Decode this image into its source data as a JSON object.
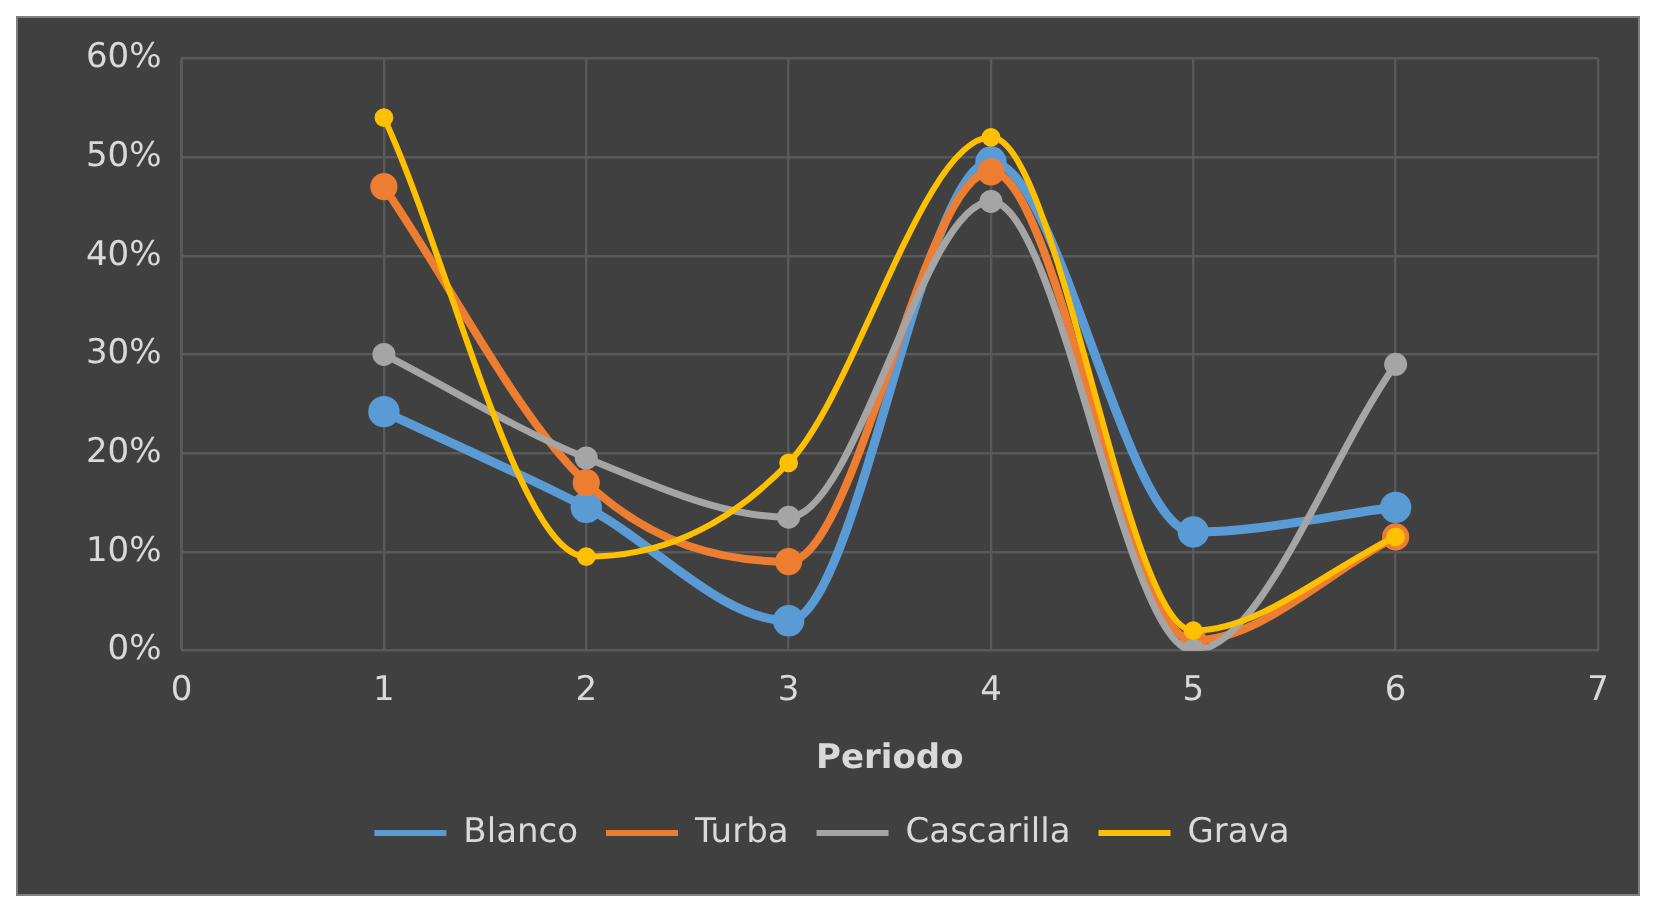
{
  "chart_data": {
    "type": "line",
    "xlabel": "Periodo",
    "x": [
      1,
      2,
      3,
      4,
      5,
      6
    ],
    "series": [
      {
        "name": "Blanco",
        "color": "#5b9bd5",
        "values": [
          24.2,
          14.5,
          3,
          49.5,
          12,
          14.5
        ]
      },
      {
        "name": "Turba",
        "color": "#ed7d31",
        "values": [
          47,
          17,
          9,
          48.5,
          1,
          11.5
        ]
      },
      {
        "name": "Cascarilla",
        "color": "#a5a5a5",
        "values": [
          30,
          19.5,
          13.5,
          45.5,
          0,
          29
        ]
      },
      {
        "name": "Grava",
        "color": "#ffc000",
        "values": [
          54,
          9.5,
          19,
          52,
          2,
          11.5
        ]
      }
    ],
    "xlim": [
      0,
      7
    ],
    "xticks": [
      0,
      1,
      2,
      3,
      4,
      5,
      6,
      7
    ],
    "ylim": [
      0,
      60
    ],
    "yticks": [
      {
        "value": 0,
        "label": "0%"
      },
      {
        "value": 10,
        "label": "10%"
      },
      {
        "value": 20,
        "label": "20%"
      },
      {
        "value": 30,
        "label": "30%"
      },
      {
        "value": 40,
        "label": "40%"
      },
      {
        "value": 50,
        "label": "50%"
      },
      {
        "value": 60,
        "label": "60%"
      }
    ],
    "grid": true,
    "legend": "bottom",
    "marker": "circle",
    "line_style": "solid"
  }
}
